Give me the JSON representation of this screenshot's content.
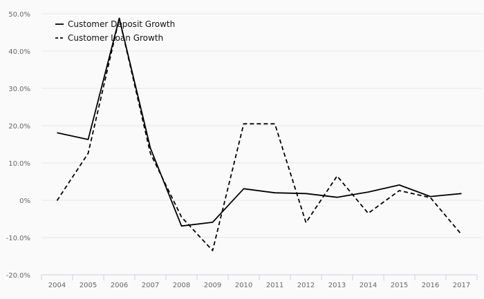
{
  "chart_data": {
    "type": "line",
    "title": "",
    "xlabel": "",
    "ylabel": "",
    "categories": [
      "2004",
      "2005",
      "2006",
      "2007",
      "2008",
      "2009",
      "2010",
      "2011",
      "2012",
      "2013",
      "2014",
      "2015",
      "2016",
      "2017"
    ],
    "ylim": [
      -20,
      50
    ],
    "yticks": [
      {
        "value": 50,
        "label": "50.0%"
      },
      {
        "value": 40,
        "label": "40.0%"
      },
      {
        "value": 30,
        "label": "30.0%"
      },
      {
        "value": 20,
        "label": "20.0%"
      },
      {
        "value": 10,
        "label": "10.0%"
      },
      {
        "value": 0,
        "label": "0%"
      },
      {
        "value": -10,
        "label": "-10.0%"
      },
      {
        "value": -20,
        "label": "-20.0%"
      }
    ],
    "grid": true,
    "legend_position": "top-left",
    "series": [
      {
        "name": "Customer Deposit Growth",
        "style": "solid",
        "color": "#000000",
        "values": [
          18.1,
          16.3,
          48.8,
          14.0,
          -6.9,
          -5.9,
          3.1,
          2.0,
          1.8,
          0.8,
          2.2,
          4.1,
          1.0,
          1.8
        ]
      },
      {
        "name": "Customer Loan Growth",
        "style": "dashed",
        "color": "#000000",
        "values": [
          -0.1,
          12.6,
          48.8,
          12.6,
          -4.5,
          -13.5,
          20.5,
          20.5,
          -6.0,
          6.5,
          -3.5,
          2.6,
          0.7,
          -9.2
        ]
      }
    ]
  }
}
